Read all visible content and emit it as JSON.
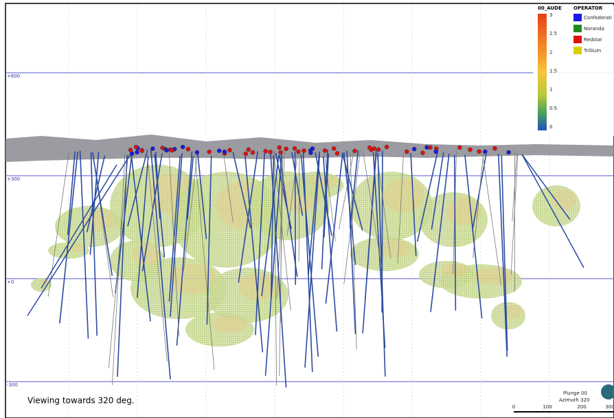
{
  "view": {
    "elevation_labels": [
      "+600",
      "+300",
      "+0",
      "-300"
    ],
    "caption": "Viewing towards 320 deg.",
    "orientation": {
      "plunge": "Plunge 00",
      "azimuth": "Azimuth 320"
    },
    "scale_labels": [
      "0",
      "100",
      "200",
      "300"
    ]
  },
  "color_scale": {
    "title": "00_AUDE",
    "labels": [
      "3",
      "2.5",
      "2",
      "1.5",
      "1",
      "0.5",
      "0"
    ]
  },
  "legend": {
    "title": "OPERATOR",
    "items": [
      {
        "label": "Confederati",
        "color": "#1a1ae6"
      },
      {
        "label": "Noranda",
        "color": "#1e8a1e"
      },
      {
        "label": "Redstar",
        "color": "#e01010"
      },
      {
        "label": "Trillium",
        "color": "#d8d000"
      }
    ]
  }
}
